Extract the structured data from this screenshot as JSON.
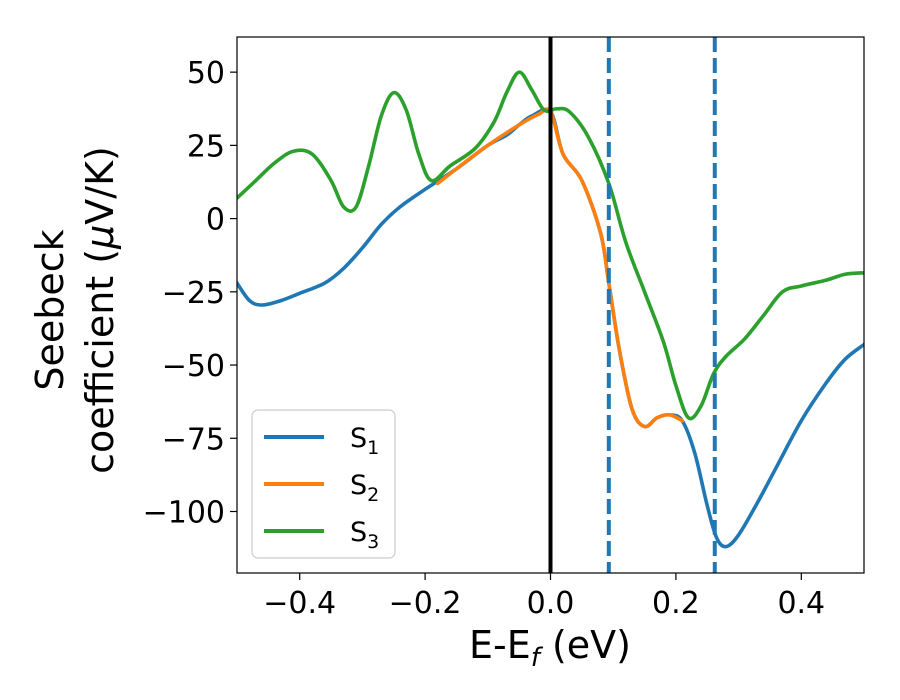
{
  "chart_data": {
    "type": "line",
    "title": "",
    "xlabel": {
      "main": "E-E",
      "sub": "f",
      "unit": " (eV)"
    },
    "ylabel": {
      "line1": "Seebeck",
      "line2_text": "coefficient  (",
      "mu": "μ",
      "line2_unit": "V/K)"
    },
    "xlim": [
      -0.5,
      0.5
    ],
    "ylim": [
      -121,
      62
    ],
    "xticks": [
      -0.4,
      -0.2,
      0.0,
      0.2,
      0.4
    ],
    "xtick_labels": [
      "−0.4",
      "−0.2",
      "0.0",
      "0.2",
      "0.4"
    ],
    "yticks": [
      50,
      25,
      0,
      -25,
      -50,
      -75,
      -100
    ],
    "ytick_labels": [
      "50",
      "25",
      "0",
      "−25",
      "−50",
      "−75",
      "−100"
    ],
    "grid": false,
    "legend_position": "lower-left",
    "vertical_lines": [
      {
        "x": 0.0,
        "style": "solid",
        "color": "#000000"
      },
      {
        "x": 0.093,
        "style": "dashed",
        "color": "#1f77b4"
      },
      {
        "x": 0.262,
        "style": "dashed",
        "color": "#1f77b4"
      }
    ],
    "series": [
      {
        "name": "S",
        "sub": "1",
        "color": "#1f77b4",
        "points": [
          [
            -0.5,
            -22
          ],
          [
            -0.48,
            -28
          ],
          [
            -0.46,
            -29.5
          ],
          [
            -0.43,
            -28
          ],
          [
            -0.4,
            -25.5
          ],
          [
            -0.36,
            -22
          ],
          [
            -0.33,
            -17
          ],
          [
            -0.3,
            -10
          ],
          [
            -0.27,
            -2
          ],
          [
            -0.24,
            4
          ],
          [
            -0.2,
            10
          ],
          [
            -0.15,
            17
          ],
          [
            -0.1,
            25
          ],
          [
            -0.07,
            28.5
          ],
          [
            -0.05,
            32
          ],
          [
            -0.03,
            35
          ],
          [
            0.0,
            36.5
          ],
          [
            0.02,
            22
          ],
          [
            0.05,
            13
          ],
          [
            0.08,
            -5
          ],
          [
            0.093,
            -22
          ],
          [
            0.11,
            -45
          ],
          [
            0.13,
            -65
          ],
          [
            0.15,
            -71
          ],
          [
            0.17,
            -68
          ],
          [
            0.19,
            -67
          ],
          [
            0.21,
            -69
          ],
          [
            0.23,
            -80
          ],
          [
            0.25,
            -98
          ],
          [
            0.265,
            -109
          ],
          [
            0.28,
            -112
          ],
          [
            0.3,
            -108
          ],
          [
            0.33,
            -97
          ],
          [
            0.36,
            -85
          ],
          [
            0.4,
            -69
          ],
          [
            0.44,
            -56
          ],
          [
            0.47,
            -48
          ],
          [
            0.5,
            -43
          ]
        ]
      },
      {
        "name": "S",
        "sub": "2",
        "color": "#ff7f0e",
        "points": [
          [
            -0.18,
            12
          ],
          [
            -0.15,
            17
          ],
          [
            -0.1,
            25
          ],
          [
            -0.05,
            32
          ],
          [
            -0.02,
            35.5
          ],
          [
            0.0,
            36.5
          ],
          [
            0.02,
            22
          ],
          [
            0.05,
            13
          ],
          [
            0.08,
            -5
          ],
          [
            0.093,
            -22
          ],
          [
            0.11,
            -45
          ],
          [
            0.13,
            -65
          ],
          [
            0.15,
            -71
          ],
          [
            0.17,
            -68
          ],
          [
            0.19,
            -67
          ],
          [
            0.21,
            -69
          ]
        ]
      },
      {
        "name": "S",
        "sub": "3",
        "color": "#2ca02c",
        "points": [
          [
            -0.5,
            7
          ],
          [
            -0.47,
            13
          ],
          [
            -0.44,
            19
          ],
          [
            -0.41,
            23
          ],
          [
            -0.38,
            22
          ],
          [
            -0.35,
            13
          ],
          [
            -0.33,
            4
          ],
          [
            -0.31,
            4
          ],
          [
            -0.29,
            18
          ],
          [
            -0.27,
            35
          ],
          [
            -0.25,
            43
          ],
          [
            -0.23,
            37
          ],
          [
            -0.21,
            22
          ],
          [
            -0.19,
            13
          ],
          [
            -0.16,
            18
          ],
          [
            -0.12,
            24
          ],
          [
            -0.09,
            33
          ],
          [
            -0.07,
            43
          ],
          [
            -0.05,
            50
          ],
          [
            -0.03,
            44
          ],
          [
            -0.01,
            37
          ],
          [
            0.01,
            37.5
          ],
          [
            0.03,
            36.5
          ],
          [
            0.06,
            28
          ],
          [
            0.093,
            12
          ],
          [
            0.12,
            -8
          ],
          [
            0.15,
            -25
          ],
          [
            0.18,
            -42
          ],
          [
            0.2,
            -57
          ],
          [
            0.22,
            -68
          ],
          [
            0.24,
            -64
          ],
          [
            0.26,
            -53
          ],
          [
            0.28,
            -47
          ],
          [
            0.31,
            -41
          ],
          [
            0.34,
            -33
          ],
          [
            0.37,
            -25
          ],
          [
            0.4,
            -23
          ],
          [
            0.44,
            -21
          ],
          [
            0.47,
            -19
          ],
          [
            0.5,
            -18.5
          ]
        ]
      }
    ]
  }
}
